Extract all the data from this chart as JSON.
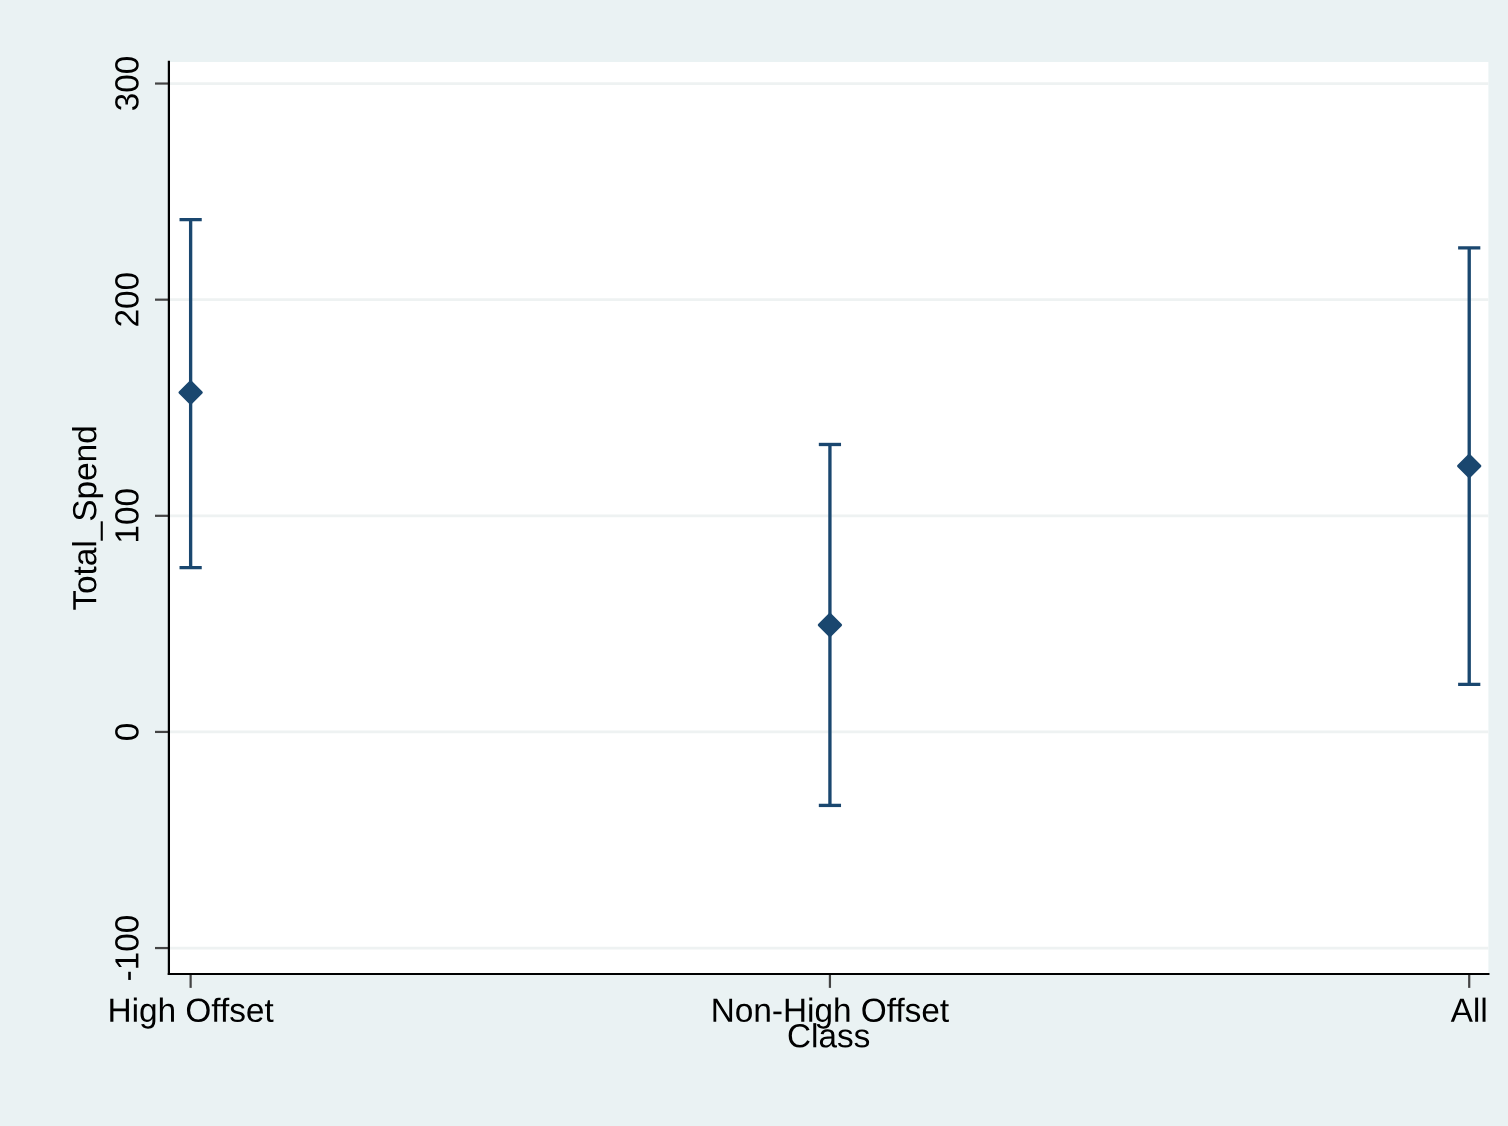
{
  "chart_data": {
    "type": "scatter",
    "xlabel": "Class",
    "ylabel": "Total_Spend",
    "categories": [
      "High Offset",
      "Non-High Offset",
      "All"
    ],
    "series": [
      {
        "color": "#1a476f",
        "values": [
          157,
          49.5,
          123
        ],
        "errors": [
          [
            76,
            237
          ],
          [
            -34,
            133
          ],
          [
            22,
            224
          ]
        ]
      }
    ],
    "ylim": [
      -112,
      310
    ],
    "yticks": [
      -100,
      0,
      100,
      200,
      300
    ],
    "grid": "y",
    "marker": "diamond"
  }
}
